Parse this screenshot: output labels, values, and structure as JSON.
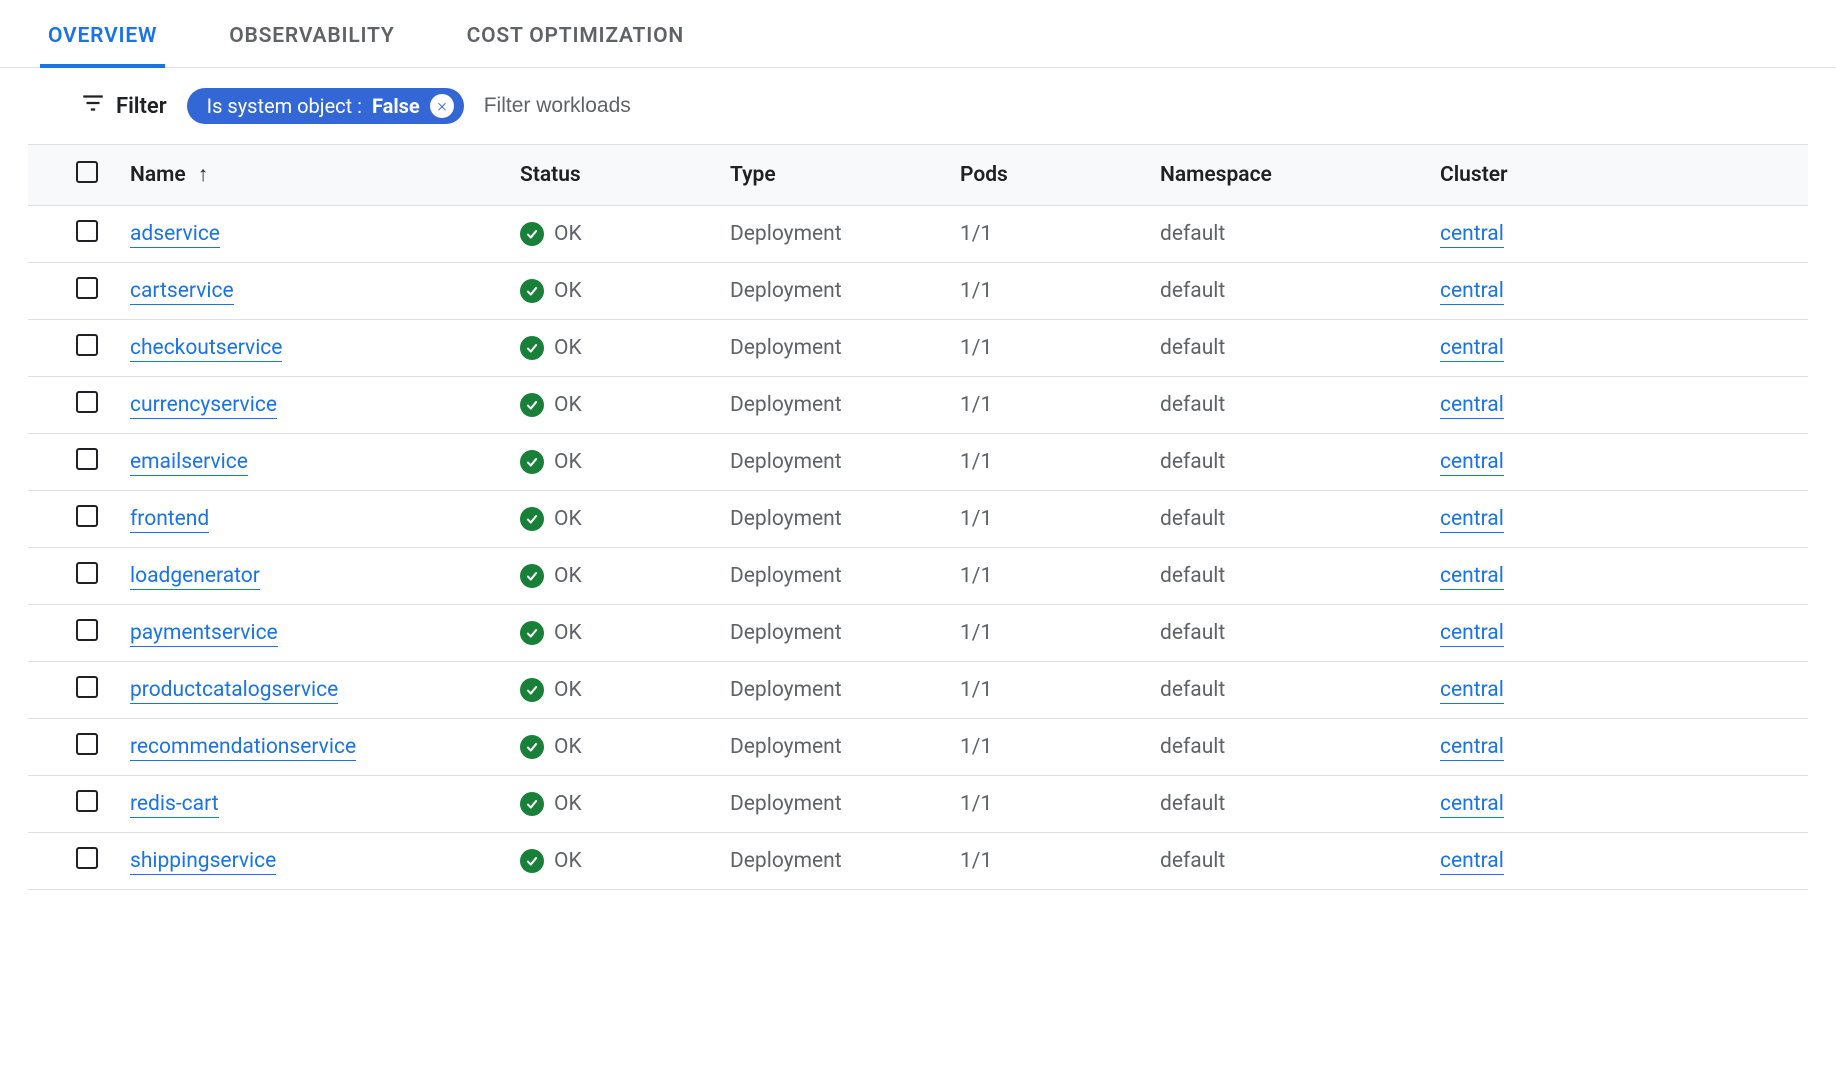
{
  "colors": {
    "link": "#1a73e8",
    "tab_active": "#1a73e8",
    "chip_bg": "#3367d6",
    "status_ok": "#188038",
    "text_secondary": "#5f6368",
    "border": "#e0e0e0",
    "header_bg": "#f8f9fa"
  },
  "tabs": [
    {
      "label": "OVERVIEW",
      "active": true
    },
    {
      "label": "OBSERVABILITY",
      "active": false
    },
    {
      "label": "COST OPTIMIZATION",
      "active": false
    }
  ],
  "filter": {
    "label": "Filter",
    "placeholder": "Filter workloads",
    "chip_key": "Is system object : ",
    "chip_value": "False"
  },
  "table": {
    "columns": [
      "Name",
      "Status",
      "Type",
      "Pods",
      "Namespace",
      "Cluster"
    ],
    "sort_column": "Name",
    "sort_dir": "asc",
    "rows": [
      {
        "name": "adservice",
        "status": "OK",
        "type": "Deployment",
        "pods": "1/1",
        "namespace": "default",
        "cluster": "central"
      },
      {
        "name": "cartservice",
        "status": "OK",
        "type": "Deployment",
        "pods": "1/1",
        "namespace": "default",
        "cluster": "central"
      },
      {
        "name": "checkoutservice",
        "status": "OK",
        "type": "Deployment",
        "pods": "1/1",
        "namespace": "default",
        "cluster": "central"
      },
      {
        "name": "currencyservice",
        "status": "OK",
        "type": "Deployment",
        "pods": "1/1",
        "namespace": "default",
        "cluster": "central"
      },
      {
        "name": "emailservice",
        "status": "OK",
        "type": "Deployment",
        "pods": "1/1",
        "namespace": "default",
        "cluster": "central"
      },
      {
        "name": "frontend",
        "status": "OK",
        "type": "Deployment",
        "pods": "1/1",
        "namespace": "default",
        "cluster": "central"
      },
      {
        "name": "loadgenerator",
        "status": "OK",
        "type": "Deployment",
        "pods": "1/1",
        "namespace": "default",
        "cluster": "central"
      },
      {
        "name": "paymentservice",
        "status": "OK",
        "type": "Deployment",
        "pods": "1/1",
        "namespace": "default",
        "cluster": "central"
      },
      {
        "name": "productcatalogservice",
        "status": "OK",
        "type": "Deployment",
        "pods": "1/1",
        "namespace": "default",
        "cluster": "central"
      },
      {
        "name": "recommendationservice",
        "status": "OK",
        "type": "Deployment",
        "pods": "1/1",
        "namespace": "default",
        "cluster": "central"
      },
      {
        "name": "redis-cart",
        "status": "OK",
        "type": "Deployment",
        "pods": "1/1",
        "namespace": "default",
        "cluster": "central"
      },
      {
        "name": "shippingservice",
        "status": "OK",
        "type": "Deployment",
        "pods": "1/1",
        "namespace": "default",
        "cluster": "central"
      }
    ]
  }
}
